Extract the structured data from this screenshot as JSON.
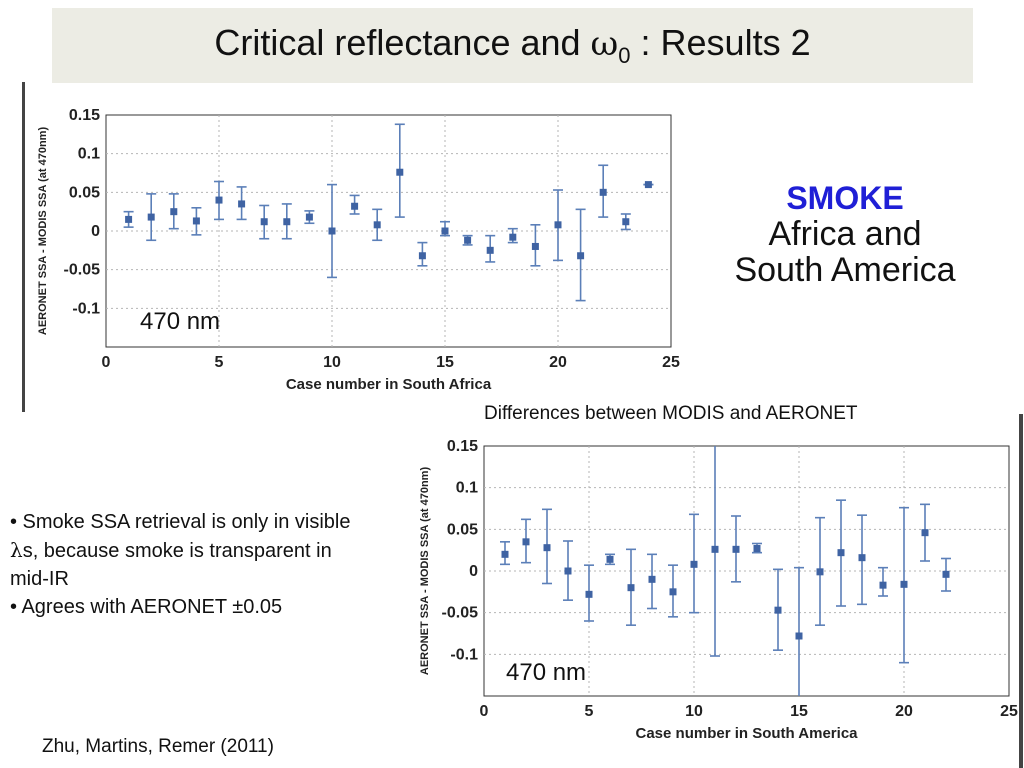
{
  "slide": {
    "title_prefix": "Critical reflectance and ",
    "title_symbol": "ω",
    "title_subscript": "0",
    "title_suffix": " : Results 2",
    "smoke": {
      "title": "SMOKE",
      "line1": "Africa and",
      "line2": "South America"
    },
    "diff_caption": "Differences between MODIS and AERONET",
    "bullets": [
      {
        "prefix": "• Smoke SSA retrieval is only in visible ",
        "symbol": "λ",
        "suffix": "s,  because smoke is  transparent in mid-IR"
      },
      {
        "text": "• Agrees with AERONET ±0.05"
      }
    ],
    "citation": "Zhu, Martins, Remer (2011)",
    "colors": {
      "marker": "#3f63a3",
      "errorbar": "#5b7fb8",
      "title_bg": "#ecece4",
      "smoke_title": "#1f1fd6"
    }
  },
  "chart_data": [
    {
      "type": "scatter",
      "xlabel": "Case number in South Africa",
      "ylabel": "AERONET SSA - MODIS SSA (at 470nm)",
      "annotation": "470 nm",
      "xlim": [
        0,
        25
      ],
      "ylim": [
        -0.15,
        0.15
      ],
      "xticks": [
        0,
        5,
        10,
        15,
        20,
        25
      ],
      "yticks": [
        0.15,
        0.1,
        0.05,
        0,
        -0.05,
        -0.1
      ],
      "ytick_labels": [
        "0.15",
        "0.1",
        "0.05",
        "0",
        "-0.05",
        "-0.1"
      ],
      "grid": true,
      "series": [
        {
          "x": [
            1,
            2,
            3,
            4,
            5,
            6,
            7,
            8,
            9,
            10,
            11,
            12,
            13,
            14,
            15,
            16,
            17,
            18,
            19,
            20,
            21,
            22,
            23,
            24
          ],
          "y": [
            0.015,
            0.018,
            0.025,
            0.013,
            0.04,
            0.035,
            0.012,
            0.012,
            0.018,
            0.0,
            0.032,
            0.008,
            0.076,
            -0.032,
            0.0,
            -0.012,
            -0.025,
            -0.008,
            -0.02,
            0.008,
            -0.032,
            0.05,
            0.012,
            0.06
          ],
          "err_low": [
            0.005,
            -0.012,
            0.003,
            -0.005,
            0.015,
            0.015,
            -0.01,
            -0.01,
            0.01,
            -0.06,
            0.022,
            -0.012,
            0.018,
            -0.045,
            -0.006,
            -0.018,
            -0.04,
            -0.015,
            -0.045,
            -0.038,
            -0.09,
            0.018,
            0.002,
            0.06
          ],
          "err_high": [
            0.025,
            0.048,
            0.048,
            0.03,
            0.064,
            0.057,
            0.033,
            0.035,
            0.026,
            0.06,
            0.046,
            0.028,
            0.138,
            -0.015,
            0.012,
            -0.006,
            -0.006,
            0.003,
            0.008,
            0.053,
            0.028,
            0.085,
            0.022,
            0.06
          ]
        }
      ]
    },
    {
      "type": "scatter",
      "xlabel": "Case number in South America",
      "ylabel": "AERONET SSA - MODIS SSA (at 470nm)",
      "annotation": "470 nm",
      "xlim": [
        0,
        25
      ],
      "ylim": [
        -0.15,
        0.15
      ],
      "xticks": [
        0,
        5,
        10,
        15,
        20,
        25
      ],
      "yticks": [
        0.15,
        0.1,
        0.05,
        0,
        -0.05,
        -0.1
      ],
      "ytick_labels": [
        "0.15",
        "0.1",
        "0.05",
        "0",
        "-0.05",
        "-0.1"
      ],
      "grid": true,
      "series": [
        {
          "x": [
            1,
            2,
            3,
            4,
            5,
            6,
            7,
            8,
            9,
            10,
            11,
            12,
            13,
            14,
            15,
            16,
            17,
            18,
            19,
            20,
            21,
            22
          ],
          "y": [
            0.02,
            0.035,
            0.028,
            0.0,
            -0.028,
            0.014,
            -0.02,
            -0.01,
            -0.025,
            0.008,
            0.026,
            0.026,
            0.027,
            -0.047,
            -0.078,
            -0.001,
            0.022,
            0.016,
            -0.017,
            -0.016,
            0.046,
            -0.004
          ],
          "err_low": [
            0.008,
            0.01,
            -0.015,
            -0.035,
            -0.06,
            0.008,
            -0.065,
            -0.045,
            -0.055,
            -0.05,
            -0.102,
            -0.013,
            0.022,
            -0.095,
            -0.16,
            -0.065,
            -0.042,
            -0.04,
            -0.03,
            -0.11,
            0.012,
            -0.024
          ],
          "err_high": [
            0.035,
            0.062,
            0.074,
            0.036,
            0.007,
            0.02,
            0.026,
            0.02,
            0.007,
            0.068,
            0.16,
            0.066,
            0.033,
            0.002,
            0.004,
            0.064,
            0.085,
            0.067,
            0.004,
            0.076,
            0.08,
            0.015
          ]
        }
      ]
    }
  ]
}
